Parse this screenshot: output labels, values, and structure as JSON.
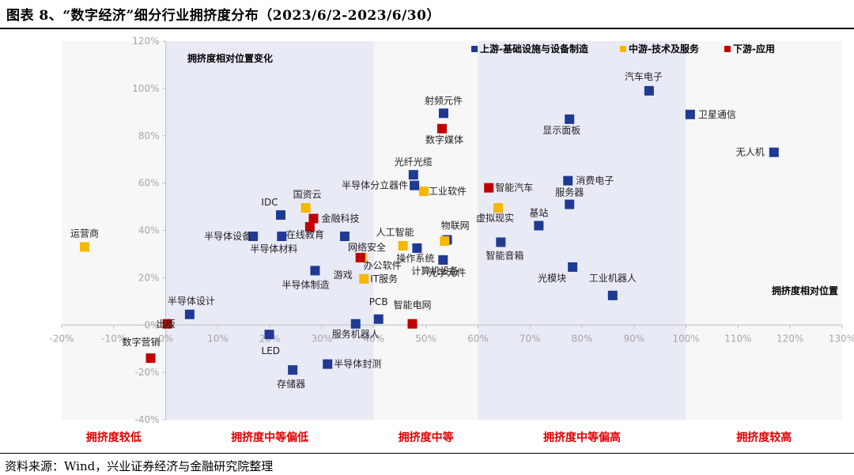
{
  "header": {
    "title": "图表 8、“数字经济”细分行业拥挤度分布（2023/6/2-2023/6/30）"
  },
  "footer": {
    "source": "资料来源：Wind，兴业证券经济与金融研究院整理"
  },
  "colors": {
    "upstream": "#1F3A93",
    "midstream": "#F5B700",
    "downstream": "#C00000",
    "zone_white": "#F7F7F7",
    "zone_blue": "#E8EBF6",
    "axis_text": "#A6A6A6",
    "zone_label": "#E00000"
  },
  "chart_data": {
    "type": "scatter",
    "xlim": [
      -20,
      130
    ],
    "ylim": [
      -40,
      120
    ],
    "x_ticks": [
      -20,
      -10,
      0,
      10,
      20,
      30,
      40,
      50,
      60,
      70,
      80,
      90,
      100,
      110,
      120,
      130
    ],
    "y_ticks": [
      -40,
      -20,
      0,
      20,
      40,
      60,
      80,
      100,
      120
    ],
    "x_tick_labels": [
      "-20%",
      "-10%",
      "0%",
      "10%",
      "20%",
      "30%",
      "40%",
      "50%",
      "60%",
      "70%",
      "80%",
      "90%",
      "100%",
      "110%",
      "120%",
      "130%"
    ],
    "y_tick_labels": [
      "-40%",
      "-20%",
      "0%",
      "20%",
      "40%",
      "60%",
      "80%",
      "100%",
      "120%"
    ],
    "xlabel": "拥挤度相对位置",
    "ylabel": "拥挤度相对位置变化",
    "grid": false,
    "legend_position": "top-right",
    "zones": [
      {
        "from": -20,
        "to": 0,
        "label": "拥挤度较低",
        "tint": "white"
      },
      {
        "from": 0,
        "to": 40,
        "label": "拥挤度中等偏低",
        "tint": "blue"
      },
      {
        "from": 40,
        "to": 60,
        "label": "拥挤度中等",
        "tint": "white"
      },
      {
        "from": 60,
        "to": 100,
        "label": "拥挤度中等偏高",
        "tint": "blue"
      },
      {
        "from": 100,
        "to": 130,
        "label": "拥挤度较高",
        "tint": "white"
      }
    ],
    "series": [
      {
        "name": "上游-基础设施与设备制造",
        "color": "#1F3A93",
        "points": [
          {
            "label": "汽车电子",
            "x": 92.9,
            "y": 99
          },
          {
            "label": "卫星通信",
            "x": 100.8,
            "y": 89
          },
          {
            "label": "显示面板",
            "x": 77.6,
            "y": 87
          },
          {
            "label": "无人机",
            "x": 116.9,
            "y": 73
          },
          {
            "label": "射频元件",
            "x": 53.4,
            "y": 89.5
          },
          {
            "label": "光纤光缆",
            "x": 47.6,
            "y": 63.5
          },
          {
            "label": "半导体分立器件",
            "x": 47.8,
            "y": 59
          },
          {
            "label": "消费电子",
            "x": 77.3,
            "y": 61
          },
          {
            "label": "服务器",
            "x": 77.6,
            "y": 51
          },
          {
            "label": "基站",
            "x": 71.7,
            "y": 42
          },
          {
            "label": "智能音箱",
            "x": 64.4,
            "y": 35
          },
          {
            "label": "物联网",
            "x": 54.1,
            "y": 36
          },
          {
            "label": "操作系统",
            "x": 48.3,
            "y": 32.5
          },
          {
            "label": "光学元件",
            "x": 53.3,
            "y": 27.5
          },
          {
            "label": "光模块",
            "x": 78.2,
            "y": 24.5
          },
          {
            "label": "工业机器人",
            "x": 85.9,
            "y": 12.5
          },
          {
            "label": "IDC",
            "x": 22.1,
            "y": 46.5
          },
          {
            "label": "半导体设备",
            "x": 16.8,
            "y": 37.5
          },
          {
            "label": "半导体材料",
            "x": 22.3,
            "y": 37.5
          },
          {
            "label": "网络安全",
            "x": 34.4,
            "y": 37.5
          },
          {
            "label": "半导体制造",
            "x": 28.7,
            "y": 23
          },
          {
            "label": "半导体设计",
            "x": 4.6,
            "y": 4.5
          },
          {
            "label": "LED",
            "x": 19.9,
            "y": -4
          },
          {
            "label": "服务机器人",
            "x": 36.5,
            "y": 0.5
          },
          {
            "label": "PCB",
            "x": 40.9,
            "y": 2.5
          },
          {
            "label": "存储器",
            "x": 24.4,
            "y": -19
          },
          {
            "label": "半导体封测",
            "x": 31.1,
            "y": -16.5
          }
        ]
      },
      {
        "name": "中游-技术及服务",
        "color": "#F5B700",
        "points": [
          {
            "label": "运营商",
            "x": -15.6,
            "y": 33
          },
          {
            "label": "国资云",
            "x": 26.9,
            "y": 49.5
          },
          {
            "label": "工业软件",
            "x": 49.6,
            "y": 56.5
          },
          {
            "label": "虚拟现实",
            "x": 63.9,
            "y": 49.5
          },
          {
            "label": "人工智能",
            "x": 45.6,
            "y": 33.5
          },
          {
            "label": "计算机设备",
            "x": 53.6,
            "y": 35.5
          },
          {
            "label": "办公软件",
            "x": 37.7,
            "y": 28.5
          },
          {
            "label": "IT服务",
            "x": 38.1,
            "y": 19.5
          }
        ]
      },
      {
        "name": "下游-应用",
        "color": "#C00000",
        "points": [
          {
            "label": "数字媒体",
            "x": 53.1,
            "y": 83
          },
          {
            "label": "智能汽车",
            "x": 62.1,
            "y": 58
          },
          {
            "label": "金融科技",
            "x": 28.4,
            "y": 45
          },
          {
            "label": "在线教育",
            "x": 27.7,
            "y": 41.5
          },
          {
            "label": "游戏",
            "x": 37.4,
            "y": 28.5
          },
          {
            "label": "出版",
            "x": 0.3,
            "y": 0.5
          },
          {
            "label": "智能电网",
            "x": 47.4,
            "y": 0.5
          },
          {
            "label": "数字营销",
            "x": -2.9,
            "y": -14
          }
        ]
      }
    ]
  }
}
